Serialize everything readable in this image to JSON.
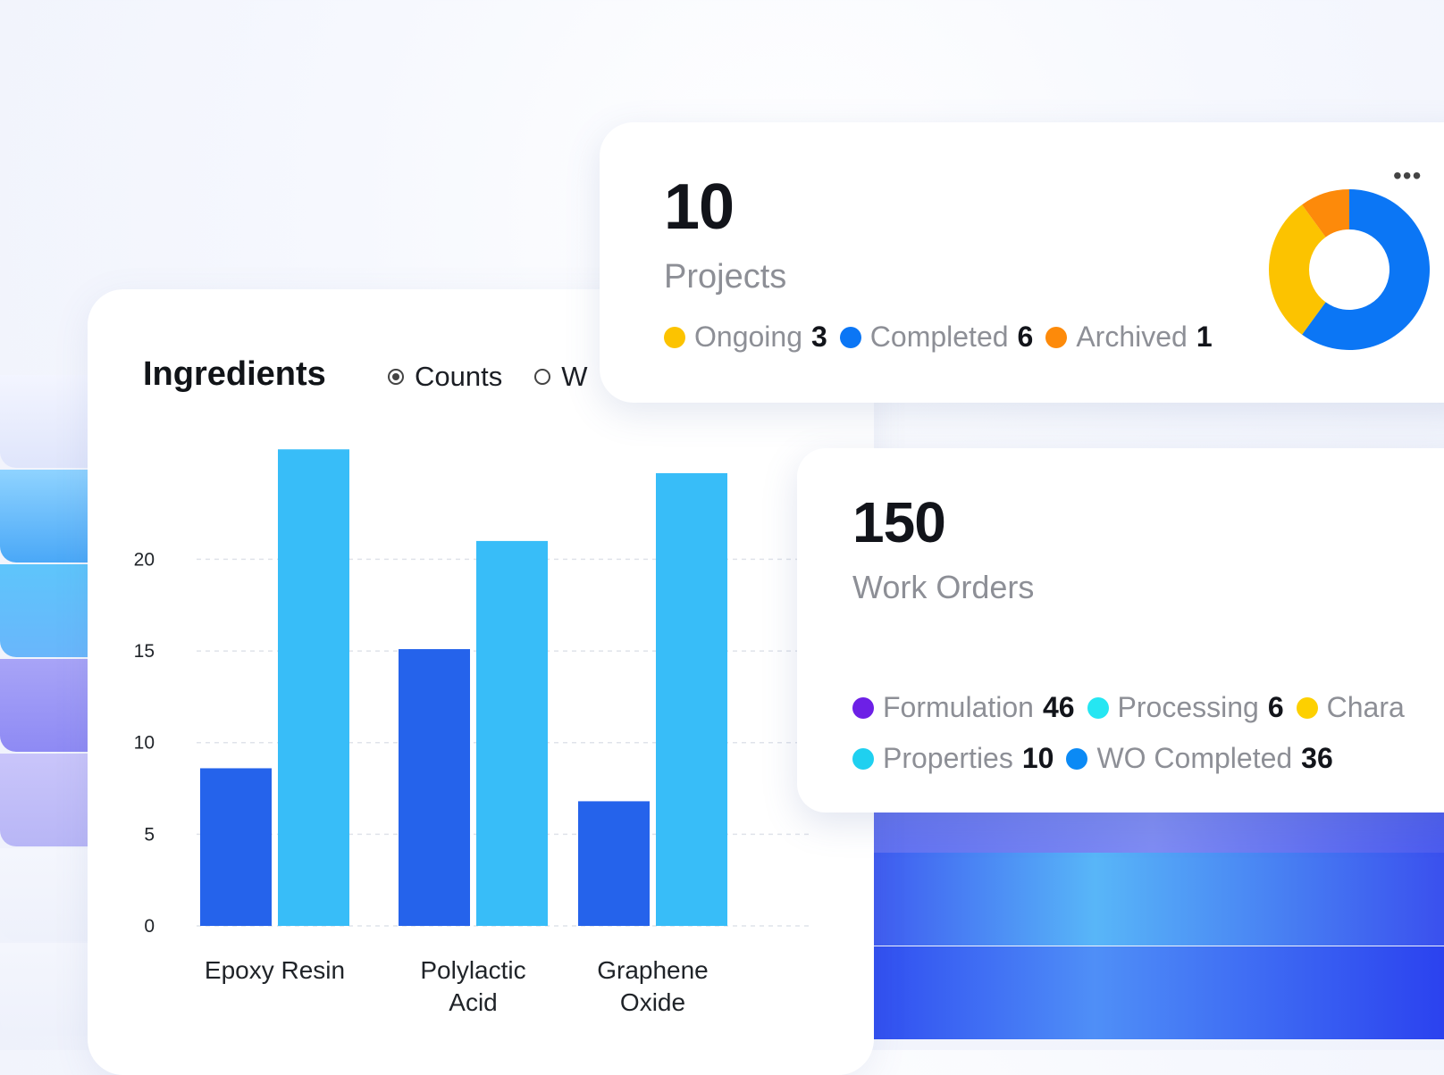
{
  "ingredients": {
    "title": "Ingredients",
    "radio_options": [
      {
        "label": "Counts",
        "selected": true
      },
      {
        "label": "W",
        "selected": false
      }
    ]
  },
  "chart_data": {
    "type": "bar",
    "categories": [
      "Epoxy Resin",
      "Polylactic Acid",
      "Graphene Oxide"
    ],
    "category_lines": [
      [
        "Epoxy Resin"
      ],
      [
        "Polylactic",
        "Acid"
      ],
      [
        "Graphene",
        "Oxide"
      ]
    ],
    "series": [
      {
        "values": [
          8.6,
          15.1,
          6.8
        ],
        "color": "#2563eb"
      },
      {
        "values": [
          26.0,
          21.0,
          24.7
        ],
        "color": "#38bdf8"
      }
    ],
    "yticks": [
      0,
      5,
      10,
      15,
      20
    ],
    "ylim": [
      0,
      26.5
    ],
    "grid": true
  },
  "projects": {
    "count": "10",
    "label": "Projects",
    "legend": [
      {
        "label": "Ongoing",
        "value": "3",
        "color": "#fcc300"
      },
      {
        "label": "Completed",
        "value": "6",
        "color": "#0b76f5"
      },
      {
        "label": "Archived",
        "value": "1",
        "color": "#fd8a0a"
      }
    ],
    "more_icon": "more-dots-icon"
  },
  "work_orders": {
    "count": "150",
    "label": "Work Orders",
    "legend_row1": [
      {
        "label": "Formulation",
        "value": "46",
        "color": "#6d20e6"
      },
      {
        "label": "Processing",
        "value": "6",
        "color": "#25e6f2"
      },
      {
        "label": "Chara",
        "value": "",
        "color": "#fdd000"
      }
    ],
    "legend_row2": [
      {
        "label": "Properties",
        "value": "10",
        "color": "#1fd0f0"
      },
      {
        "label": "WO Completed",
        "value": "36",
        "color": "#0b8af5"
      }
    ]
  }
}
